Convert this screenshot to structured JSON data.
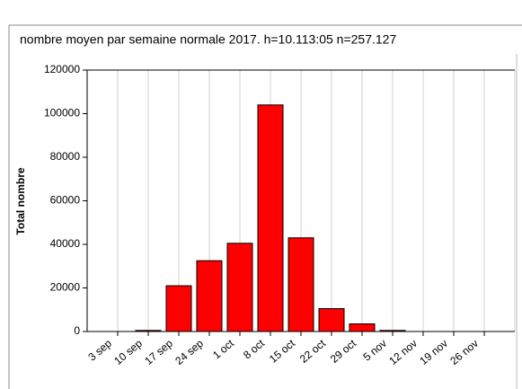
{
  "chart_data": {
    "type": "bar",
    "title": "nombre moyen par semaine normale 2017. h=10.113:05 n=257.127",
    "y_label": "Total nombre",
    "categories": [
      "3 sep",
      "10 sep",
      "17 sep",
      "24 sep",
      "1 oct",
      "8 oct",
      "15 oct",
      "22 oct",
      "29 oct",
      "5 nov",
      "12 nov",
      "19 nov",
      "26 nov"
    ],
    "values": [
      0,
      500,
      21000,
      32500,
      40500,
      104000,
      43000,
      10500,
      3500,
      500,
      0,
      0,
      0
    ],
    "color": "#ff0000",
    "ylim": [
      0,
      120000
    ],
    "yticks": [
      0,
      20000,
      40000,
      60000,
      80000,
      100000,
      120000
    ],
    "grid": true
  }
}
